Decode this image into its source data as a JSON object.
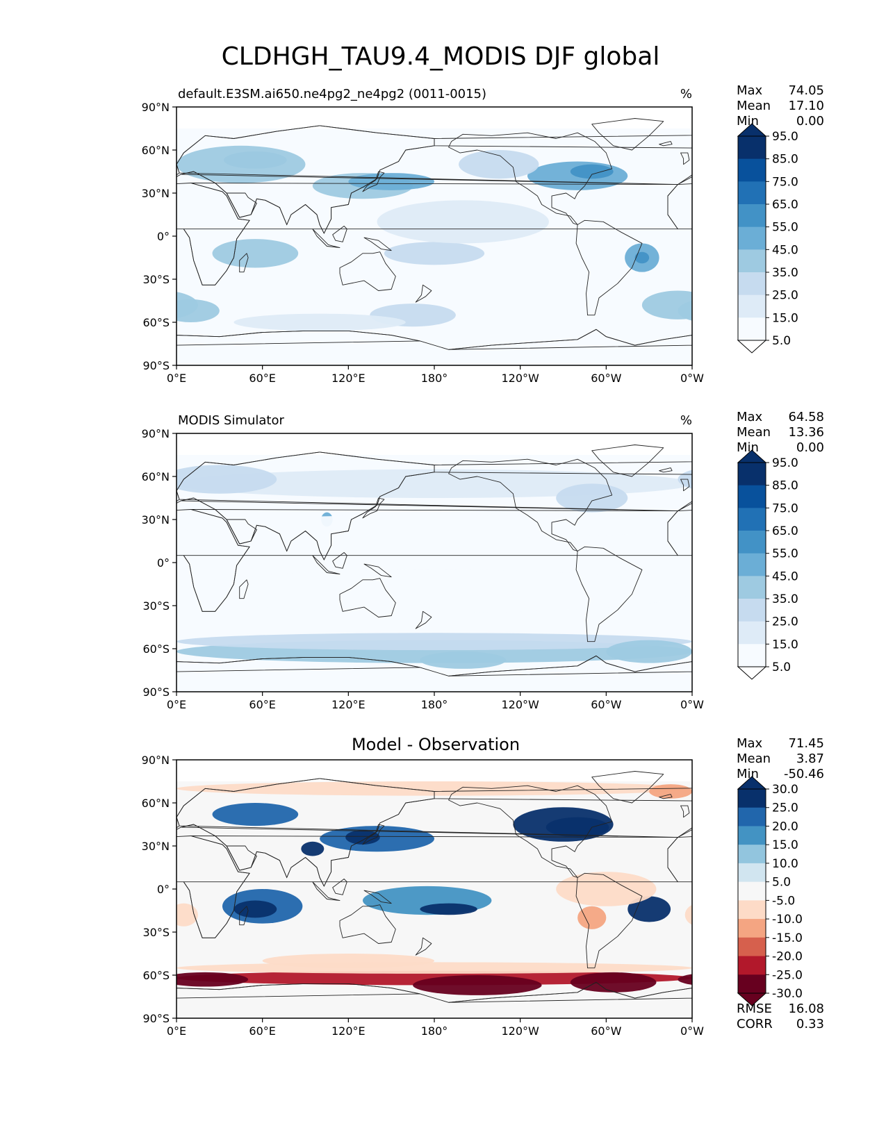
{
  "figure": {
    "title": "CLDHGH_TAU9.4_MODIS DJF global"
  },
  "chart_data": [
    {
      "type": "heatmap",
      "title_left": "default.E3SM.ai650.ne4pg2_ne4pg2 (0011-0015)",
      "title_center": "",
      "units": "%",
      "xlim": [
        0,
        360
      ],
      "ylim": [
        -90,
        90
      ],
      "x_ticks": [
        "0°E",
        "60°E",
        "120°E",
        "180°",
        "120°W",
        "60°W",
        "0°W"
      ],
      "y_ticks": [
        "90°N",
        "60°N",
        "30°N",
        "0°",
        "30°S",
        "60°S",
        "90°S"
      ],
      "stats": [
        {
          "label": "Max",
          "value": "74.05"
        },
        {
          "label": "Mean",
          "value": "17.10"
        },
        {
          "label": "Min",
          "value": "0.00"
        }
      ],
      "colorbar": {
        "extend": "both",
        "tick_labels": [
          "95.0",
          "85.0",
          "75.0",
          "65.0",
          "55.0",
          "45.0",
          "35.0",
          "25.0",
          "15.0",
          "5.0"
        ],
        "colors": [
          "#08306b",
          "#08519c",
          "#2171b5",
          "#4292c6",
          "#6baed6",
          "#9ecae1",
          "#c6dbef",
          "#deebf7",
          "#f7fbff"
        ],
        "over_color": "#08306b",
        "under_color": "#ffffff"
      },
      "field_blobs": [
        {
          "lon": 55,
          "lat": 53,
          "rlon": 22,
          "rlat": 6,
          "value": 52
        },
        {
          "lon": 45,
          "lat": 50,
          "rlon": 45,
          "rlat": 13,
          "value": 38
        },
        {
          "lon": 130,
          "lat": 35,
          "rlon": 35,
          "rlat": 9,
          "value": 40
        },
        {
          "lon": 150,
          "lat": 38,
          "rlon": 30,
          "rlat": 6,
          "value": 48
        },
        {
          "lon": 280,
          "lat": 42,
          "rlon": 35,
          "rlat": 10,
          "value": 45
        },
        {
          "lon": 290,
          "lat": 45,
          "rlon": 15,
          "rlat": 5,
          "value": 55
        },
        {
          "lon": 225,
          "lat": 50,
          "rlon": 28,
          "rlat": 10,
          "value": 30
        },
        {
          "lon": 55,
          "lat": -12,
          "rlon": 30,
          "rlat": 10,
          "value": 38
        },
        {
          "lon": 325,
          "lat": -15,
          "rlon": 12,
          "rlat": 10,
          "value": 45
        },
        {
          "lon": 325,
          "lat": -15,
          "rlon": 5,
          "rlat": 4,
          "value": 62
        },
        {
          "lon": 180,
          "lat": -12,
          "rlon": 35,
          "rlat": 8,
          "value": 30
        },
        {
          "lon": 10,
          "lat": -52,
          "rlon": 20,
          "rlat": 8,
          "value": 40
        },
        {
          "lon": 350,
          "lat": -48,
          "rlon": 25,
          "rlat": 10,
          "value": 35
        },
        {
          "lon": 165,
          "lat": -55,
          "rlon": 30,
          "rlat": 8,
          "value": 25
        },
        {
          "lon": 100,
          "lat": -60,
          "rlon": 60,
          "rlat": 6,
          "value": 20
        },
        {
          "lon": 200,
          "lat": 10,
          "rlon": 60,
          "rlat": 15,
          "value": 15
        }
      ]
    },
    {
      "type": "heatmap",
      "title_left": "MODIS Simulator",
      "title_center": "",
      "units": "%",
      "xlim": [
        0,
        360
      ],
      "ylim": [
        -90,
        90
      ],
      "x_ticks": [
        "0°E",
        "60°E",
        "120°E",
        "180°",
        "120°W",
        "60°W",
        "0°W"
      ],
      "y_ticks": [
        "90°N",
        "60°N",
        "30°N",
        "0°",
        "30°S",
        "60°S",
        "90°S"
      ],
      "stats": [
        {
          "label": "Max",
          "value": "64.58"
        },
        {
          "label": "Mean",
          "value": "13.36"
        },
        {
          "label": "Min",
          "value": "0.00"
        }
      ],
      "colorbar": {
        "extend": "both",
        "tick_labels": [
          "95.0",
          "85.0",
          "75.0",
          "65.0",
          "55.0",
          "45.0",
          "35.0",
          "25.0",
          "15.0",
          "5.0"
        ],
        "colors": [
          "#08306b",
          "#08519c",
          "#2171b5",
          "#4292c6",
          "#6baed6",
          "#9ecae1",
          "#c6dbef",
          "#deebf7",
          "#f7fbff"
        ],
        "over_color": "#08306b",
        "under_color": "#ffffff"
      },
      "field_blobs": [
        {
          "lon": 180,
          "lat": -62,
          "rlon": 180,
          "rlat": 8,
          "value": 35
        },
        {
          "lon": 180,
          "lat": -55,
          "rlon": 180,
          "rlat": 6,
          "value": 25
        },
        {
          "lon": 200,
          "lat": -68,
          "rlon": 30,
          "rlat": 6,
          "value": 42
        },
        {
          "lon": 330,
          "lat": -62,
          "rlon": 30,
          "rlat": 8,
          "value": 42
        },
        {
          "lon": 105,
          "lat": 30,
          "rlon": 4,
          "rlat": 5,
          "value": 48
        },
        {
          "lon": 180,
          "lat": 55,
          "rlon": 180,
          "rlat": 10,
          "value": 22
        },
        {
          "lon": 30,
          "lat": 58,
          "rlon": 40,
          "rlat": 10,
          "value": 28
        },
        {
          "lon": 290,
          "lat": 45,
          "rlon": 25,
          "rlat": 10,
          "value": 25
        },
        {
          "lon": 180,
          "lat": 25,
          "rlon": 180,
          "rlat": 8,
          "value": 12
        },
        {
          "lon": 180,
          "lat": -20,
          "rlon": 180,
          "rlat": 15,
          "value": 12
        }
      ]
    },
    {
      "type": "heatmap",
      "title_left": "",
      "title_center": "Model - Observation",
      "units": "",
      "xlim": [
        0,
        360
      ],
      "ylim": [
        -90,
        90
      ],
      "x_ticks": [
        "0°E",
        "60°E",
        "120°E",
        "180°",
        "120°W",
        "60°W",
        "0°W"
      ],
      "y_ticks": [
        "90°N",
        "60°N",
        "30°N",
        "0°",
        "30°S",
        "60°S",
        "90°S"
      ],
      "stats": [
        {
          "label": "Max",
          "value": "71.45"
        },
        {
          "label": "Mean",
          "value": "3.87"
        },
        {
          "label": "Min",
          "value": "-50.46"
        }
      ],
      "bottom_stats": [
        {
          "label": "RMSE",
          "value": "16.08"
        },
        {
          "label": "CORR",
          "value": "0.33"
        }
      ],
      "colorbar": {
        "extend": "both",
        "tick_labels": [
          "30.0",
          "25.0",
          "20.0",
          "15.0",
          "10.0",
          "5.0",
          "-5.0",
          "-10.0",
          "-15.0",
          "-20.0",
          "-25.0",
          "-30.0"
        ],
        "colors": [
          "#08306b",
          "#2166ac",
          "#4393c3",
          "#92c5de",
          "#d1e5f0",
          "#f7f7f7",
          "#fddbc7",
          "#f4a582",
          "#d6604d",
          "#b2182b",
          "#67001f"
        ],
        "over_color": "#08306b",
        "under_color": "#67001f"
      },
      "field_blobs": [
        {
          "lon": 55,
          "lat": 52,
          "rlon": 30,
          "rlat": 8,
          "value": 22
        },
        {
          "lon": 140,
          "lat": 35,
          "rlon": 40,
          "rlat": 9,
          "value": 22
        },
        {
          "lon": 95,
          "lat": 28,
          "rlon": 8,
          "rlat": 5,
          "value": 30
        },
        {
          "lon": 130,
          "lat": 36,
          "rlon": 12,
          "rlat": 5,
          "value": 28
        },
        {
          "lon": 270,
          "lat": 45,
          "rlon": 35,
          "rlat": 12,
          "value": 26
        },
        {
          "lon": 280,
          "lat": 43,
          "rlon": 22,
          "rlat": 7,
          "value": 34
        },
        {
          "lon": 60,
          "lat": -12,
          "rlon": 28,
          "rlat": 12,
          "value": 24
        },
        {
          "lon": 55,
          "lat": -14,
          "rlon": 15,
          "rlat": 6,
          "value": 34
        },
        {
          "lon": 175,
          "lat": -8,
          "rlon": 45,
          "rlat": 10,
          "value": 18
        },
        {
          "lon": 190,
          "lat": -14,
          "rlon": 20,
          "rlat": 4,
          "value": 26
        },
        {
          "lon": 330,
          "lat": -14,
          "rlon": 15,
          "rlat": 9,
          "value": 28
        },
        {
          "lon": 180,
          "lat": 70,
          "rlon": 180,
          "rlat": 5,
          "value": -7
        },
        {
          "lon": 345,
          "lat": 68,
          "rlon": 15,
          "rlat": 5,
          "value": -12
        },
        {
          "lon": 300,
          "lat": 0,
          "rlon": 35,
          "rlat": 12,
          "value": -9
        },
        {
          "lon": 290,
          "lat": -20,
          "rlon": 10,
          "rlat": 8,
          "value": -14
        },
        {
          "lon": 5,
          "lat": -18,
          "rlon": 10,
          "rlat": 8,
          "value": -9
        },
        {
          "lon": 120,
          "lat": -50,
          "rlon": 60,
          "rlat": 5,
          "value": -9
        },
        {
          "lon": 180,
          "lat": -62,
          "rlon": 180,
          "rlat": 5,
          "value": -22
        },
        {
          "lon": 20,
          "lat": -63,
          "rlon": 30,
          "rlat": 5,
          "value": -32
        },
        {
          "lon": 210,
          "lat": -67,
          "rlon": 45,
          "rlat": 7,
          "value": -34
        },
        {
          "lon": 305,
          "lat": -65,
          "rlon": 30,
          "rlat": 7,
          "value": -36
        },
        {
          "lon": 180,
          "lat": -55,
          "rlon": 180,
          "rlat": 4,
          "value": -7
        }
      ]
    }
  ]
}
